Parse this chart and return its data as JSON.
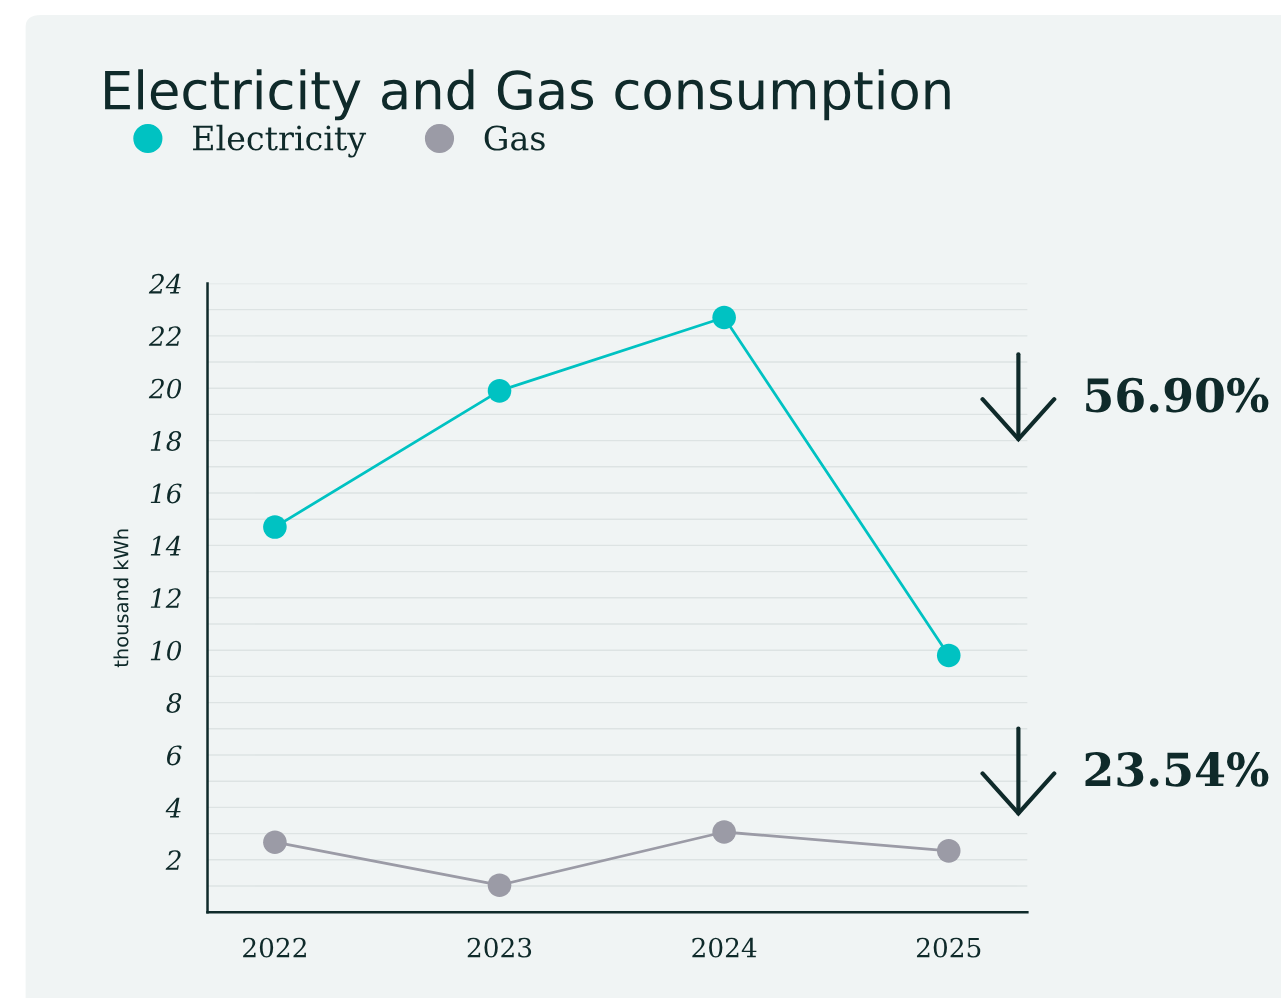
{
  "chart_data": {
    "type": "line",
    "title": "Electricity and Gas consumption",
    "ylabel": "thousand kWh",
    "categories": [
      "2022",
      "2023",
      "2024",
      "2025"
    ],
    "series": [
      {
        "name": "Electricity",
        "color": "#00c2c2",
        "values": [
          14.7,
          19.9,
          22.7,
          9.8
        ]
      },
      {
        "name": "Gas",
        "color": "#9b9ba6",
        "values": [
          2.67,
          1.03,
          3.06,
          2.34
        ]
      }
    ],
    "ylim": [
      0,
      24
    ],
    "yticks": [
      {
        "value": 1,
        "label": null
      },
      2,
      {
        "value": 3,
        "label": null
      },
      4,
      {
        "value": 5,
        "label": null
      },
      6,
      {
        "value": 7,
        "label": null
      },
      8,
      {
        "value": 9,
        "label": null
      },
      10,
      {
        "value": 11,
        "label": null
      },
      12,
      {
        "value": 13,
        "label": null
      },
      14,
      {
        "value": 15,
        "label": null
      },
      16,
      {
        "value": 17,
        "label": null
      },
      18,
      {
        "value": 19,
        "label": null
      },
      20,
      {
        "value": 21,
        "label": null
      },
      22,
      {
        "value": 23,
        "label": null
      },
      24
    ],
    "grid": "y",
    "legend": "top left",
    "marker": "circle",
    "line_style": "solid",
    "annotations": [
      "56.90%",
      "23.54%"
    ]
  }
}
